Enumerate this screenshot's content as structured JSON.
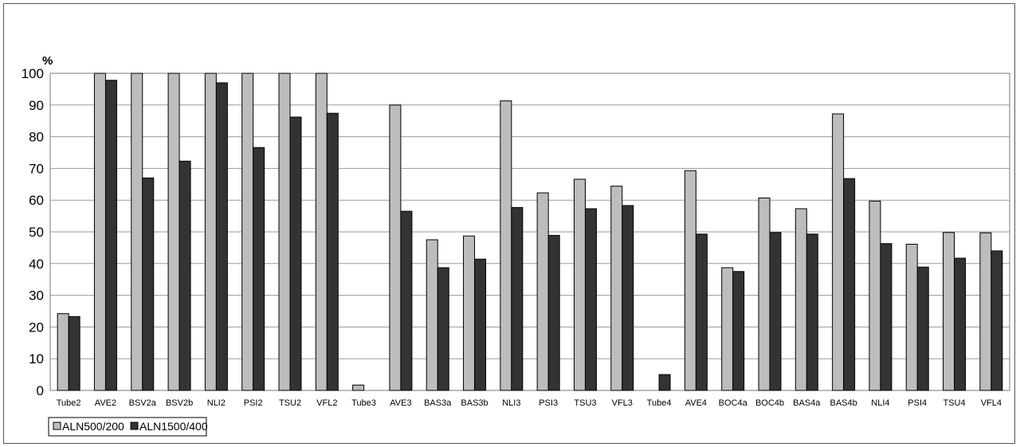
{
  "chart_data": {
    "type": "bar",
    "ylabel": "%",
    "ylim": [
      0,
      100
    ],
    "ytick_step": 10,
    "grid": true,
    "legend_position": "bottom-left",
    "categories": [
      "Tube2",
      "AVE2",
      "BSV2a",
      "BSV2b",
      "NLI2",
      "PSI2",
      "TSU2",
      "VFL2",
      "Tube3",
      "AVE3",
      "BAS3a",
      "BAS3b",
      "NLI3",
      "PSI3",
      "TSU3",
      "VFL3",
      "Tube4",
      "AVE4",
      "BOC4a",
      "BOC4b",
      "BAS4a",
      "BAS4b",
      "NLI4",
      "PSI4",
      "TSU4",
      "VFL4"
    ],
    "series": [
      {
        "name": "ALN500/200",
        "color": "#bdbdbd",
        "values": [
          24.2,
          100,
          100,
          100,
          100,
          100,
          100,
          100,
          1.7,
          90,
          47.5,
          48.7,
          91.3,
          62.3,
          66.6,
          64.4,
          0,
          69.3,
          38.7,
          60.7,
          57.3,
          87.2,
          59.7,
          46.1,
          49.8,
          49.7
        ]
      },
      {
        "name": "ALN1500/400",
        "color": "#333333",
        "values": [
          23.3,
          97.8,
          67,
          72.3,
          97,
          76.6,
          86.2,
          87.4,
          0,
          56.5,
          38.7,
          41.4,
          57.7,
          48.9,
          57.3,
          58.3,
          5,
          49.3,
          37.5,
          49.8,
          49.3,
          66.8,
          46.3,
          38.9,
          41.7,
          44
        ]
      }
    ]
  }
}
